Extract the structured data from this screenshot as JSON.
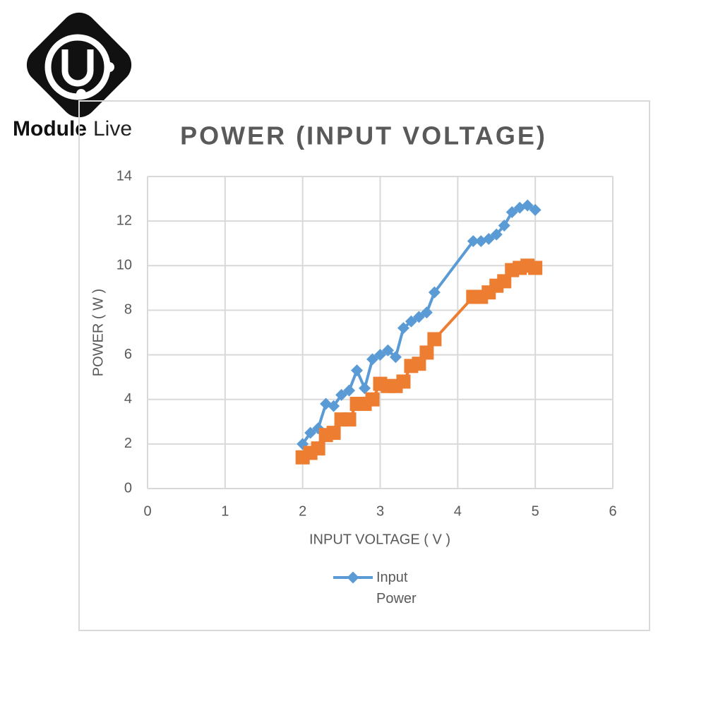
{
  "logo": {
    "brand_bold": "Module",
    "brand_light": "Live"
  },
  "chart_data": {
    "type": "line",
    "title": "POWER (INPUT VOLTAGE)",
    "x_label": "INPUT VOLTAGE ( V )",
    "y_label": "POWER ( W )",
    "xlim": [
      0,
      6
    ],
    "xticks": [
      0,
      1,
      2,
      3,
      4,
      5,
      6
    ],
    "ylim": [
      0,
      14
    ],
    "yticks": [
      0,
      2,
      4,
      6,
      8,
      10,
      12,
      14
    ],
    "grid": true,
    "legend": "bottom",
    "series": [
      {
        "name": "Input Power",
        "color": "#5b9bd5",
        "marker": "diamond",
        "x": [
          2.0,
          2.1,
          2.2,
          2.3,
          2.4,
          2.5,
          2.6,
          2.7,
          2.8,
          2.9,
          3.0,
          3.1,
          3.2,
          3.3,
          3.4,
          3.5,
          3.6,
          3.7,
          4.2,
          4.3,
          4.4,
          4.5,
          4.6,
          4.7,
          4.8,
          4.9,
          5.0
        ],
        "values": [
          2.0,
          2.5,
          2.7,
          3.8,
          3.7,
          4.2,
          4.4,
          5.3,
          4.5,
          5.8,
          6.0,
          6.2,
          5.9,
          7.2,
          7.5,
          7.7,
          7.9,
          8.8,
          11.1,
          11.1,
          11.2,
          11.4,
          11.8,
          12.4,
          12.6,
          12.7,
          12.5
        ]
      },
      {
        "color": "#ed7d31",
        "marker": "square",
        "x": [
          2.0,
          2.1,
          2.2,
          2.3,
          2.4,
          2.5,
          2.6,
          2.7,
          2.8,
          2.9,
          3.0,
          3.1,
          3.2,
          3.3,
          3.4,
          3.5,
          3.6,
          3.7,
          4.2,
          4.3,
          4.4,
          4.5,
          4.6,
          4.7,
          4.8,
          4.9,
          5.0
        ],
        "values": [
          1.4,
          1.6,
          1.8,
          2.4,
          2.5,
          3.1,
          3.1,
          3.8,
          3.8,
          4.0,
          4.7,
          4.6,
          4.6,
          4.8,
          5.5,
          5.6,
          6.1,
          6.7,
          8.6,
          8.6,
          8.8,
          9.1,
          9.3,
          9.8,
          9.9,
          10.0,
          9.9
        ]
      }
    ]
  }
}
